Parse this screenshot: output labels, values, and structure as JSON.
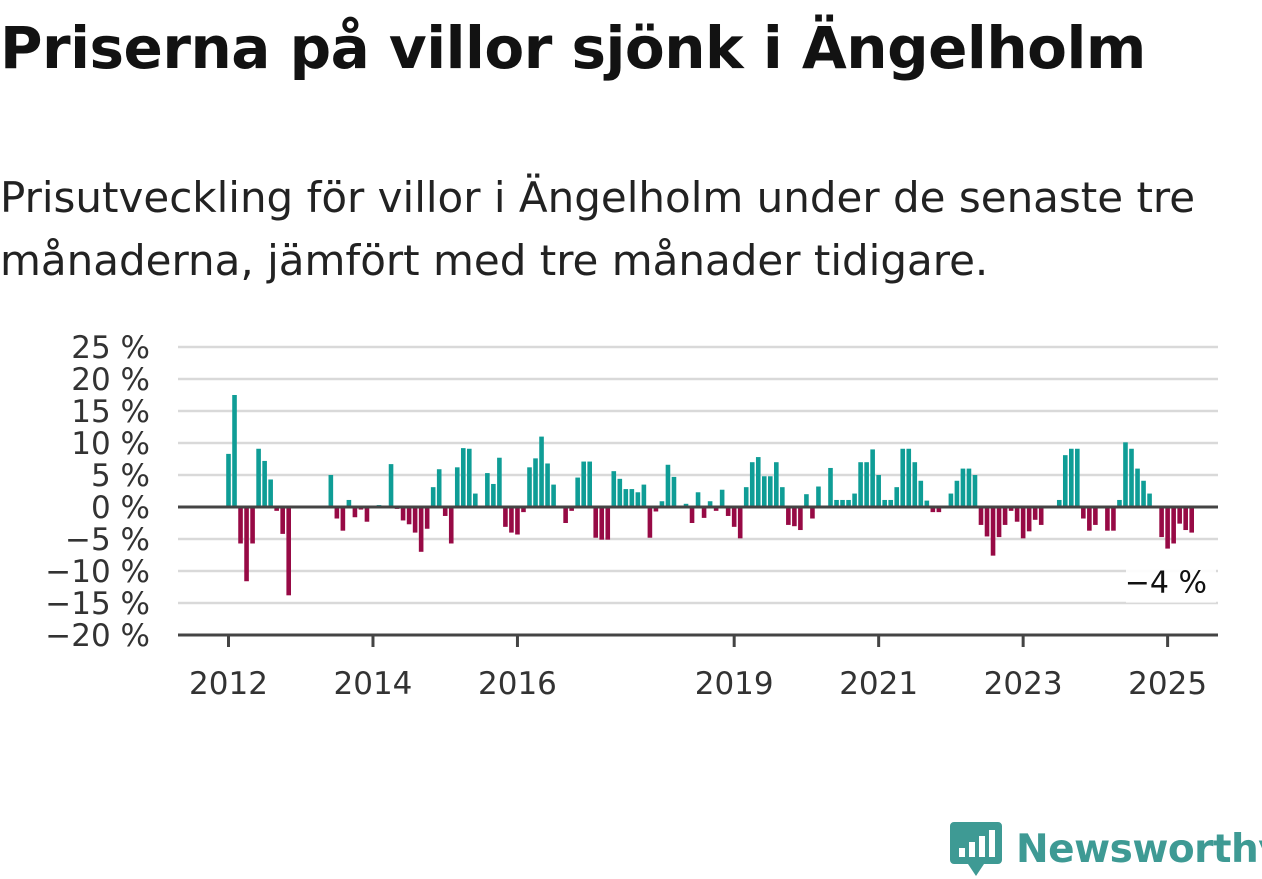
{
  "title": "Priserna på villor sjönk i Ängelholm",
  "subtitle": "Prisutveckling för villor i Ängelholm under de senaste tre månaderna, jämfört med tre månader tidigare.",
  "logo": {
    "text": "Newsworthy",
    "icon": "newsworthy-chart-icon"
  },
  "colors": {
    "positive": "#0f9d96",
    "negative": "#970a45",
    "grid": "#d9d9d9",
    "axis": "#444444",
    "logo": "#3e9a94"
  },
  "chart_data": {
    "type": "bar",
    "title": "",
    "xlabel": "",
    "ylabel": "",
    "ylim": [
      -20,
      25
    ],
    "y_ticks": [
      25,
      20,
      15,
      10,
      5,
      0,
      -5,
      -10,
      -15,
      -20
    ],
    "y_tick_labels": [
      "25 %",
      "20 %",
      "15 %",
      "10 %",
      "5 %",
      "0 %",
      "−5 %",
      "−10 %",
      "−15 %",
      "−20 %"
    ],
    "x_tick_labels": [
      {
        "label": "2012",
        "index": 0
      },
      {
        "label": "2014",
        "index": 24
      },
      {
        "label": "2016",
        "index": 48
      },
      {
        "label": "2019",
        "index": 84
      },
      {
        "label": "2021",
        "index": 108
      },
      {
        "label": "2023",
        "index": 132
      },
      {
        "label": "2025",
        "index": 156
      }
    ],
    "grid": true,
    "start": "2012-01",
    "frequency": "monthly",
    "values": [
      8.3,
      17.5,
      -5.7,
      -11.6,
      -5.7,
      9.1,
      7.2,
      4.3,
      -0.6,
      -4.2,
      -13.8,
      0,
      0,
      0,
      0,
      0,
      0,
      5.0,
      -1.8,
      -3.7,
      1.1,
      -1.6,
      -0.4,
      -2.3,
      0,
      0.3,
      0,
      6.7,
      -0.3,
      -2.1,
      -2.7,
      -4.0,
      -7.0,
      -3.4,
      3.1,
      5.9,
      -1.4,
      -5.7,
      6.2,
      9.2,
      9.1,
      2.1,
      0,
      5.3,
      3.6,
      7.7,
      -3.1,
      -4.0,
      -4.3,
      -0.8,
      6.2,
      7.6,
      11.0,
      6.8,
      3.5,
      0,
      -2.5,
      -0.6,
      4.6,
      7.1,
      7.1,
      -4.8,
      -5.1,
      -5.1,
      5.6,
      4.4,
      2.8,
      2.8,
      2.3,
      3.5,
      -4.8,
      -0.7,
      0.9,
      6.6,
      4.7,
      -0.2,
      0.5,
      -2.5,
      2.3,
      -1.7,
      0.9,
      -0.6,
      2.7,
      -1.4,
      -3.1,
      -4.9,
      3.1,
      7.0,
      7.8,
      4.8,
      4.8,
      7.0,
      3.1,
      -2.8,
      -3.0,
      -3.6,
      2.0,
      -1.8,
      3.2,
      0,
      6.1,
      1.1,
      1.1,
      1.1,
      2.1,
      7.0,
      7.0,
      9.0,
      5.0,
      1.1,
      1.1,
      3.1,
      9.1,
      9.1,
      7.0,
      4.1,
      1.0,
      -0.8,
      -0.8,
      0,
      2.1,
      4.1,
      6.0,
      6.0,
      5.0,
      -2.8,
      -4.6,
      -7.6,
      -4.7,
      -2.8,
      -0.6,
      -2.3,
      -4.9,
      -3.8,
      -2.0,
      -2.8,
      0,
      0,
      1.1,
      8.1,
      9.1,
      9.1,
      -1.8,
      -3.7,
      -2.8,
      0,
      -3.7,
      -3.7,
      1.1,
      10.1,
      9.1,
      6.0,
      4.1,
      2.1,
      0,
      -4.7,
      -6.5,
      -5.7,
      -2.6,
      -3.6,
      -4.0
    ],
    "annotation": {
      "label": "−4 %",
      "value": -4.0
    }
  }
}
